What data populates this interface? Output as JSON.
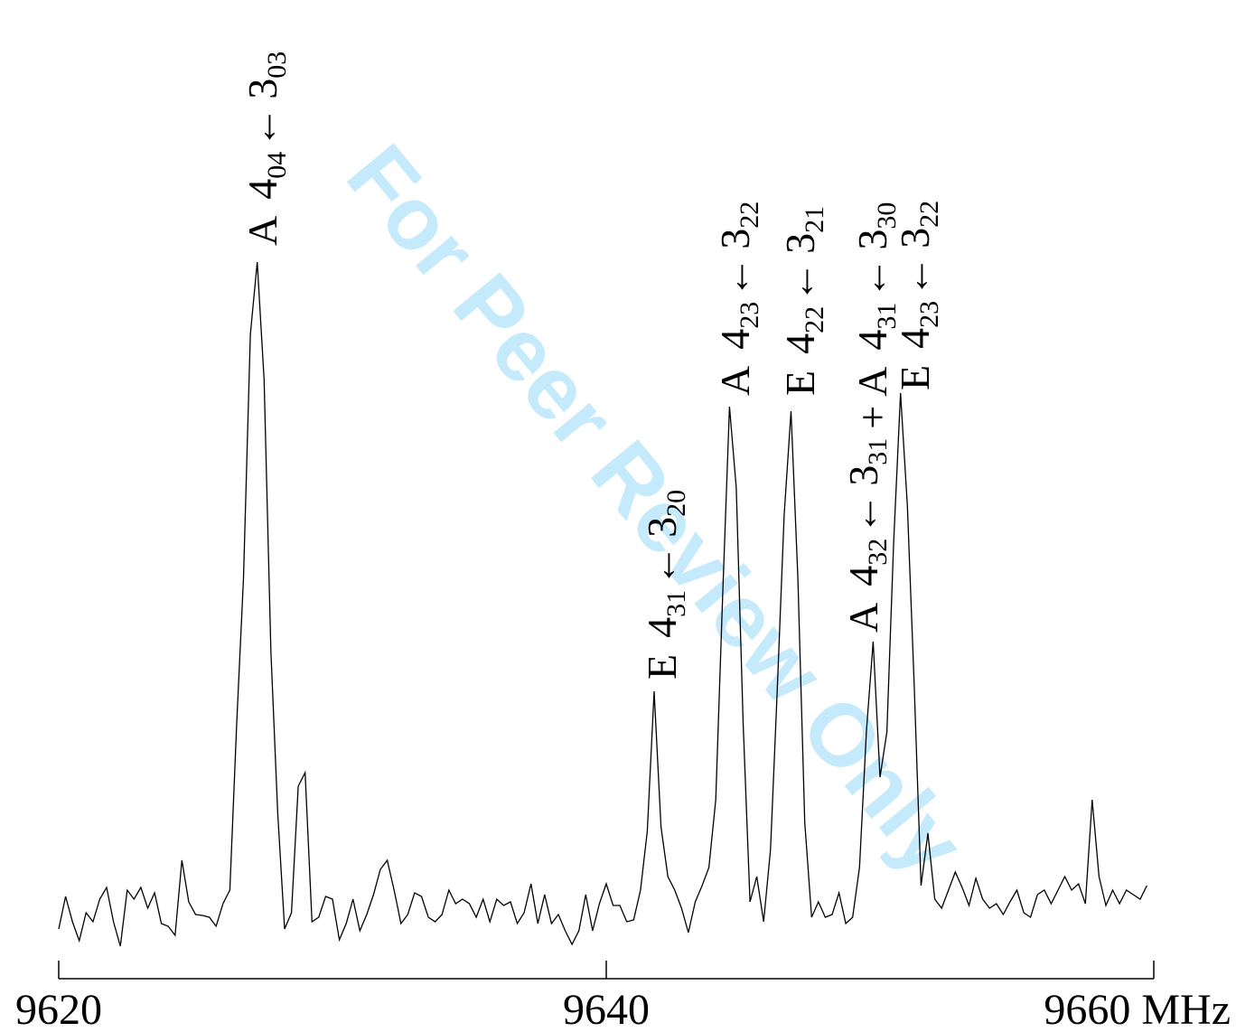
{
  "chart_data": {
    "type": "line",
    "watermark": "For Peer Review Only",
    "xlim": [
      9620,
      9660
    ],
    "xticks": [
      9620,
      9640,
      {
        "value": 9660,
        "label": "9660 MHz"
      }
    ],
    "color": "#000000",
    "x": [
      9620,
      9620.25,
      9620.5,
      9620.75,
      9621,
      9621.25,
      9621.5,
      9621.75,
      9622,
      9622.25,
      9622.5,
      9622.75,
      9623,
      9623.25,
      9623.5,
      9623.75,
      9624,
      9624.25,
      9624.5,
      9624.75,
      9625,
      9625.25,
      9625.5,
      9625.75,
      9626,
      9626.25,
      9626.5,
      9626.75,
      9627,
      9627.25,
      9627.5,
      9627.75,
      9628,
      9628.25,
      9628.5,
      9628.75,
      9629,
      9629.25,
      9629.5,
      9629.75,
      9630,
      9630.25,
      9630.5,
      9630.75,
      9631,
      9631.25,
      9631.5,
      9631.75,
      9632,
      9632.25,
      9632.5,
      9632.75,
      9633,
      9633.25,
      9633.5,
      9633.75,
      9634,
      9634.25,
      9634.5,
      9634.75,
      9635,
      9635.25,
      9635.5,
      9635.75,
      9636,
      9636.25,
      9636.5,
      9636.75,
      9637,
      9637.25,
      9637.5,
      9637.75,
      9638,
      9638.25,
      9638.5,
      9638.75,
      9639,
      9639.25,
      9639.5,
      9639.75,
      9640,
      9640.25,
      9640.5,
      9640.75,
      9641,
      9641.25,
      9641.5,
      9641.75,
      9642,
      9642.25,
      9642.5,
      9642.75,
      9643,
      9643.25,
      9643.5,
      9643.75,
      9644,
      9644.25,
      9644.5,
      9644.75,
      9645,
      9645.25,
      9645.5,
      9645.75,
      9646,
      9646.25,
      9646.5,
      9646.75,
      9647,
      9647.25,
      9647.5,
      9647.75,
      9648,
      9648.25,
      9648.5,
      9648.75,
      9649,
      9649.25,
      9649.5,
      9649.75,
      9650,
      9650.25,
      9650.5,
      9650.75,
      9651,
      9651.25,
      9651.5,
      9651.75,
      9652,
      9652.25,
      9652.5,
      9652.75,
      9653,
      9653.25,
      9653.5,
      9653.75,
      9654,
      9654.25,
      9654.5,
      9654.75,
      9655,
      9655.25,
      9655.5,
      9655.75,
      9656,
      9656.25,
      9656.5,
      9656.75,
      9657,
      9657.25,
      9657.5,
      9657.75,
      9658,
      9658.25,
      9658.5,
      9658.75,
      9659,
      9659.25,
      9659.5,
      9659.75
    ],
    "values": [
      3.2,
      6.8,
      4.0,
      1.9,
      5.0,
      4.0,
      6.5,
      7.8,
      4.0,
      1.3,
      7.5,
      6.5,
      7.8,
      5.5,
      7.2,
      3.8,
      3.5,
      2.5,
      10.8,
      6.2,
      4.8,
      4.7,
      4.5,
      3.5,
      6.0,
      7.5,
      26.0,
      42.0,
      69.0,
      77.0,
      64.0,
      34.0,
      16.0,
      3.2,
      5.0,
      19.0,
      20.5,
      4.0,
      4.5,
      6.8,
      6.5,
      2.0,
      3.8,
      6.5,
      3.0,
      4.8,
      7.0,
      9.8,
      10.8,
      7.5,
      3.8,
      4.8,
      7.2,
      6.8,
      4.5,
      4.0,
      4.8,
      7.5,
      6.0,
      6.5,
      6.0,
      4.5,
      6.5,
      4.0,
      6.5,
      5.8,
      6.2,
      3.8,
      5.0,
      8.2,
      3.8,
      7.0,
      3.8,
      4.8,
      3.0,
      1.5,
      3.0,
      7.0,
      3.0,
      6.0,
      8.2,
      5.8,
      5.8,
      4.0,
      4.2,
      7.5,
      14.0,
      29.5,
      14.5,
      9.0,
      7.5,
      5.5,
      2.8,
      6.2,
      8.0,
      10.0,
      17.5,
      40.0,
      61.0,
      52.0,
      26.0,
      6.2,
      9.0,
      4.0,
      12.0,
      30.0,
      49.0,
      60.5,
      42.0,
      15.0,
      4.5,
      6.2,
      4.5,
      4.8,
      7.2,
      3.8,
      4.5,
      10.0,
      25.0,
      35.0,
      20.0,
      25.0,
      46.0,
      62.5,
      50.0,
      30.0,
      8.0,
      13.8,
      6.5,
      5.5,
      7.5,
      9.5,
      7.8,
      5.8,
      8.8,
      6.5,
      5.5,
      6.0,
      4.8,
      6.2,
      7.5,
      5.0,
      4.5,
      7.0,
      7.5,
      6.0,
      7.5,
      9.0,
      7.5,
      8.2,
      6.0,
      17.5,
      9.0,
      5.8,
      7.5,
      6.0,
      7.5,
      7.0,
      6.5,
      8.0
    ],
    "annotations": [
      {
        "transitions": [
          {
            "species": "A",
            "upper": "4",
            "upper_sub": "04",
            "arrow": "←",
            "lower": "3",
            "lower_sub": "03"
          }
        ]
      },
      {
        "transitions": [
          {
            "species": "E",
            "upper": "4",
            "upper_sub": "31",
            "arrow": "←",
            "lower": "3",
            "lower_sub": "20"
          }
        ]
      },
      {
        "transitions": [
          {
            "species": "A",
            "upper": "4",
            "upper_sub": "23",
            "arrow": "←",
            "lower": "3",
            "lower_sub": "22"
          }
        ]
      },
      {
        "transitions": [
          {
            "species": "E",
            "upper": "4",
            "upper_sub": "22",
            "arrow": "←",
            "lower": "3",
            "lower_sub": "21"
          }
        ]
      },
      {
        "transitions": [
          {
            "species": "A",
            "upper": "4",
            "upper_sub": "32",
            "arrow": "←",
            "lower": "3",
            "lower_sub": "31"
          },
          {
            "species": "A",
            "upper": "4",
            "upper_sub": "31",
            "arrow": "←",
            "lower": "3",
            "lower_sub": "30"
          }
        ],
        "joiner": "+"
      },
      {
        "transitions": [
          {
            "species": "E",
            "upper": "4",
            "upper_sub": "23",
            "arrow": "←",
            "lower": "3",
            "lower_sub": "22"
          }
        ]
      }
    ]
  }
}
